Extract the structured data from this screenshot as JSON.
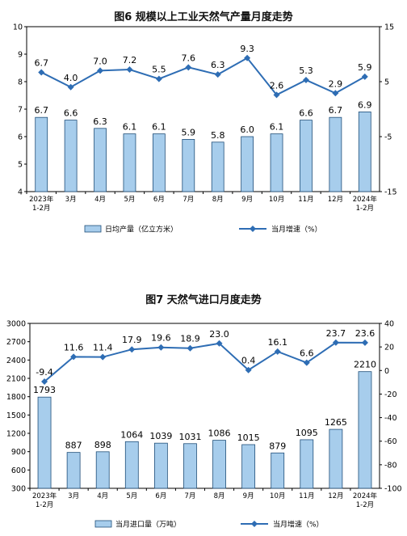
{
  "colors": {
    "bar_fill": "#a7cdec",
    "bar_stroke": "#1f4e79",
    "line": "#2e6db4",
    "axis": "#000000"
  },
  "chart_data": [
    {
      "type": "bar+line",
      "title": "图6  规模以上工业天然气产量月度走势",
      "categories": [
        "2023年\n1-2月",
        "3月",
        "4月",
        "5月",
        "6月",
        "7月",
        "8月",
        "9月",
        "10月",
        "11月",
        "12月",
        "2024年\n1-2月"
      ],
      "series": [
        {
          "name": "日均产量（亿立方米）",
          "type": "bar",
          "axis": "left",
          "values": [
            6.7,
            6.6,
            6.3,
            6.1,
            6.1,
            5.9,
            5.8,
            6.0,
            6.1,
            6.6,
            6.7,
            6.9
          ]
        },
        {
          "name": "当月增速（%）",
          "type": "line",
          "axis": "right",
          "values": [
            6.7,
            4.0,
            7.0,
            7.2,
            5.5,
            7.6,
            6.3,
            9.3,
            2.6,
            5.3,
            2.9,
            5.9
          ]
        }
      ],
      "y_left": {
        "min": 4,
        "max": 10,
        "ticks": [
          4,
          5,
          6,
          7,
          8,
          9,
          10
        ]
      },
      "y_right": {
        "min": -15,
        "max": 15,
        "ticks": [
          -15,
          -5,
          5,
          15
        ]
      },
      "legend_position": "bottom",
      "grid": false
    },
    {
      "type": "bar+line",
      "title": "图7  天然气进口月度走势",
      "categories": [
        "2023年\n1-2月",
        "3月",
        "4月",
        "5月",
        "6月",
        "7月",
        "8月",
        "9月",
        "10月",
        "11月",
        "12月",
        "2024年\n1-2月"
      ],
      "series": [
        {
          "name": "当月进口量（万吨）",
          "type": "bar",
          "axis": "left",
          "values": [
            1793,
            887,
            898,
            1064,
            1039,
            1031,
            1086,
            1015,
            879,
            1095,
            1265,
            2210
          ]
        },
        {
          "name": "当月增速（%）",
          "type": "line",
          "axis": "right",
          "values": [
            -9.4,
            11.6,
            11.4,
            17.9,
            19.6,
            18.9,
            23.0,
            0.4,
            16.1,
            6.6,
            23.7,
            23.6
          ]
        }
      ],
      "y_left": {
        "min": 300,
        "max": 3000,
        "ticks": [
          300,
          600,
          900,
          1200,
          1500,
          1800,
          2100,
          2400,
          2700,
          3000
        ]
      },
      "y_right": {
        "min": -100,
        "max": 40,
        "ticks": [
          -100,
          -80,
          -60,
          -40,
          -20,
          0,
          20,
          40
        ]
      },
      "legend_position": "bottom",
      "grid": false
    }
  ]
}
